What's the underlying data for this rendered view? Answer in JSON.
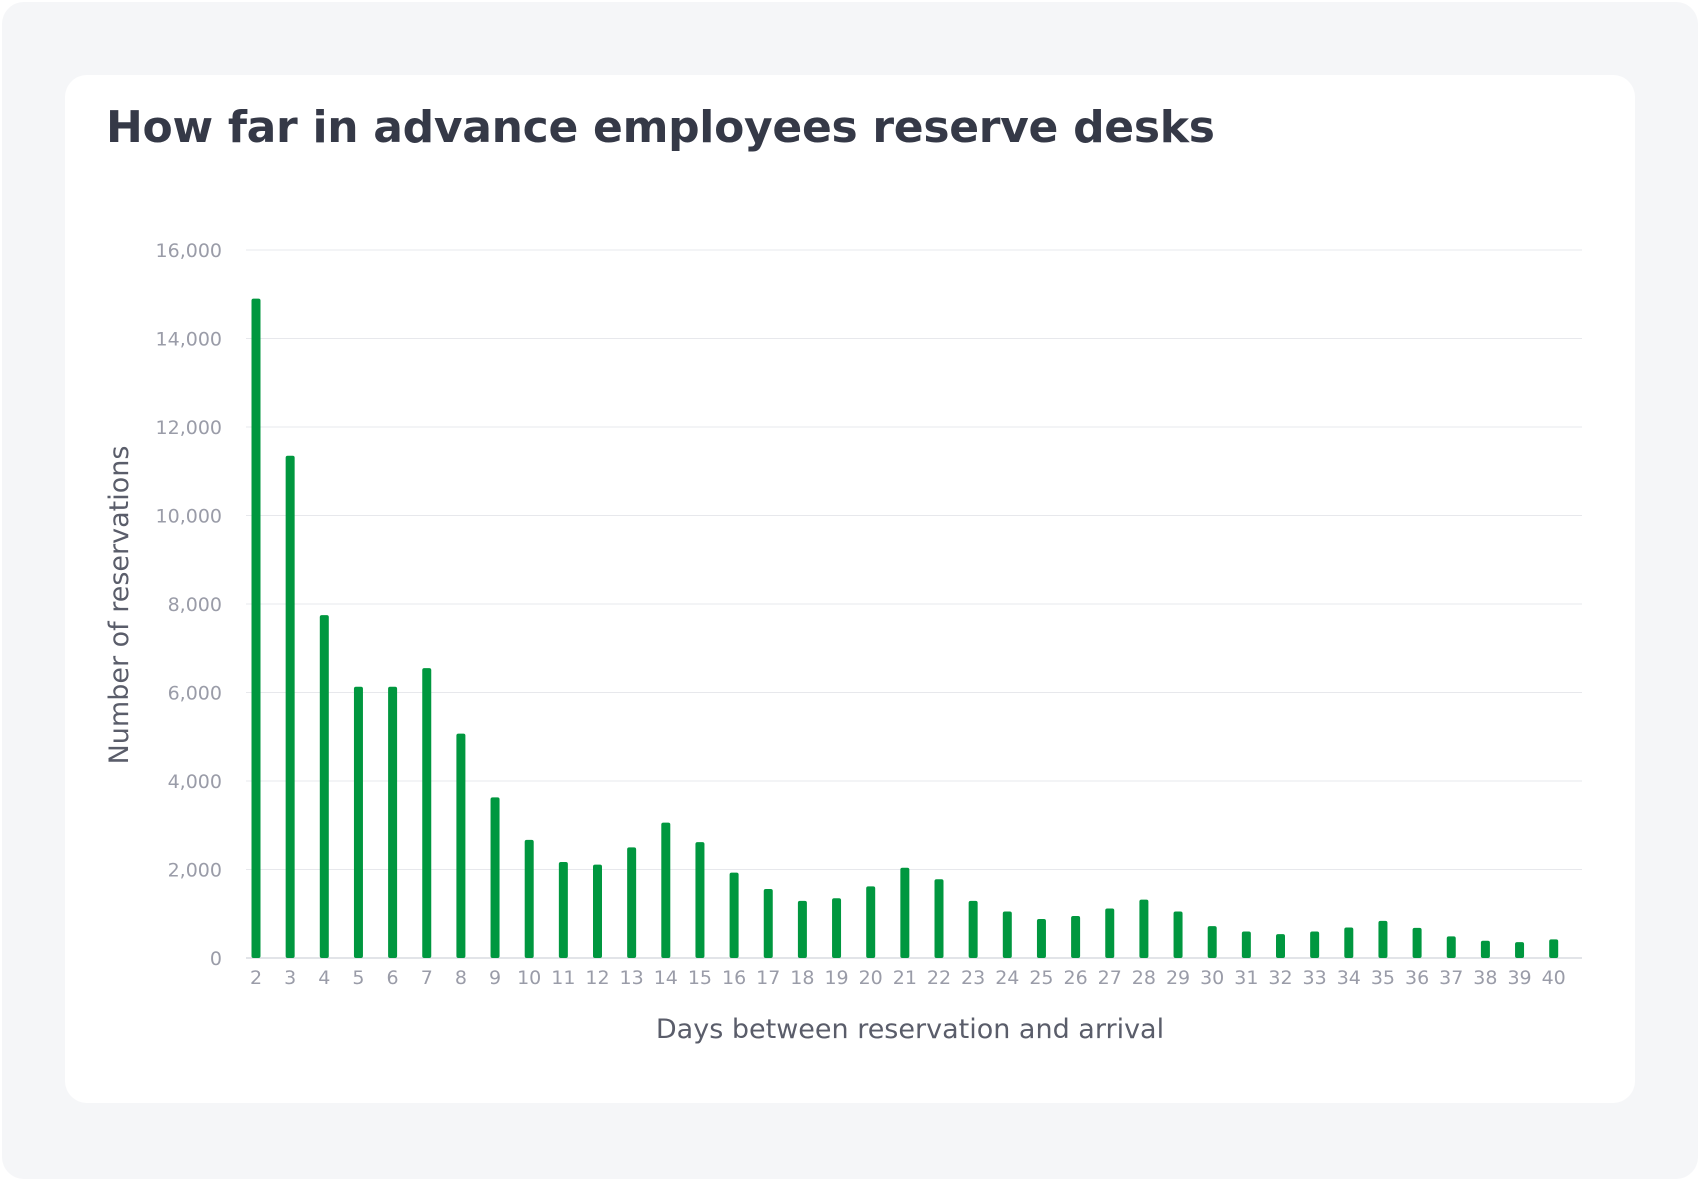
{
  "chart_data": {
    "type": "bar",
    "title": "How far in advance employees reserve desks",
    "xlabel": "Days between reservation and arrival",
    "ylabel": "Number of reservations",
    "ylim": [
      0,
      16000
    ],
    "yticks": [
      0,
      2000,
      4000,
      6000,
      8000,
      10000,
      12000,
      14000,
      16000
    ],
    "ytick_labels": [
      "0",
      "2,000",
      "4,000",
      "6,000",
      "8,000",
      "10,000",
      "12,000",
      "14,000",
      "16,000"
    ],
    "categories": [
      "2",
      "3",
      "4",
      "5",
      "6",
      "7",
      "8",
      "9",
      "10",
      "11",
      "12",
      "13",
      "14",
      "15",
      "16",
      "17",
      "18",
      "19",
      "20",
      "21",
      "22",
      "23",
      "24",
      "25",
      "26",
      "27",
      "28",
      "29",
      "30",
      "31",
      "32",
      "33",
      "34",
      "35",
      "36",
      "37",
      "38",
      "39",
      "40"
    ],
    "series": [
      {
        "name": "Reservations",
        "color": "#00973f",
        "values": [
          14900,
          11350,
          7750,
          6130,
          6130,
          6550,
          5070,
          3630,
          2670,
          2170,
          2110,
          2500,
          3060,
          2620,
          1930,
          1560,
          1290,
          1350,
          1620,
          2040,
          1780,
          1290,
          1050,
          880,
          950,
          1120,
          1320,
          1050,
          720,
          600,
          540,
          600,
          690,
          840,
          680,
          490,
          390,
          360,
          420
        ]
      }
    ],
    "grid": true
  }
}
